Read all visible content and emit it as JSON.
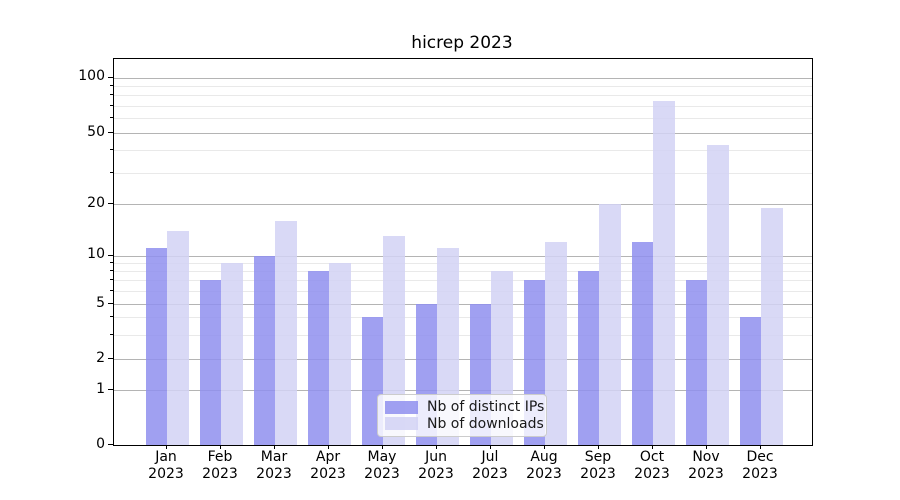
{
  "title": "hicrep 2023",
  "colors": {
    "ips_bar": "#8f8fee",
    "downloads_bar": "#d2d2f5",
    "grid_major": "#b4b4b4",
    "grid_minor": "#e9e9e9",
    "spine": "#000000",
    "background": "#ffffff",
    "legend_border": "#cccccc"
  },
  "legend": {
    "items": [
      {
        "label": "Nb of distinct IPs",
        "color": "#8f8fee"
      },
      {
        "label": "Nb of downloads",
        "color": "#d2d2f5"
      }
    ]
  },
  "chart_data": {
    "type": "bar",
    "title": "hicrep 2023",
    "categories": [
      "Jan",
      "Feb",
      "Mar",
      "Apr",
      "May",
      "Jun",
      "Jul",
      "Aug",
      "Sep",
      "Oct",
      "Nov",
      "Dec"
    ],
    "year": "2023",
    "series": [
      {
        "name": "Nb of distinct IPs",
        "key": "distinct-ips",
        "values": [
          11,
          7,
          10,
          8,
          4,
          5,
          5,
          7,
          8,
          12,
          7,
          4
        ]
      },
      {
        "name": "Nb of downloads",
        "key": "downloads",
        "values": [
          14,
          9,
          16,
          9,
          13,
          11,
          8,
          12,
          20,
          75,
          43,
          19
        ]
      }
    ],
    "yscale": "symlog",
    "ylim": [
      0,
      126
    ],
    "ytick_values": [
      0,
      1,
      2,
      5,
      10,
      20,
      50,
      100
    ],
    "ytick_labels": [
      "0",
      "1",
      "2",
      "5",
      "10",
      "20",
      "50",
      "100"
    ],
    "minor_ytick_values": [
      3,
      4,
      6,
      7,
      8,
      9,
      30,
      40,
      60,
      70,
      80,
      90
    ],
    "grid": "both",
    "legend_position": "lower-center"
  }
}
